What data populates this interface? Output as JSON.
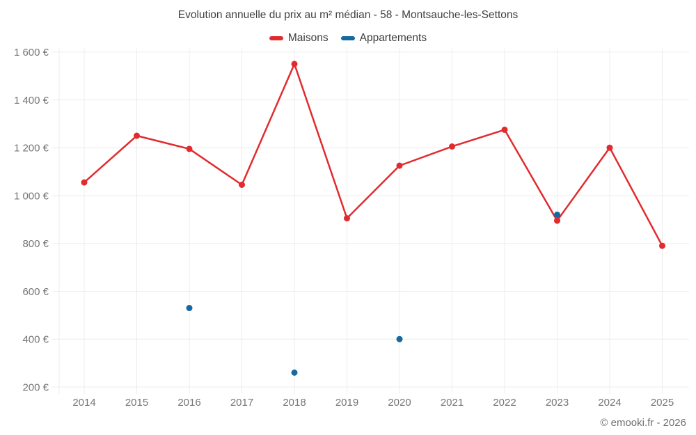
{
  "page": {
    "title": "Evolution annuelle du prix au m² médian - 58 - Montsauche-les-Settons",
    "footer": "© emooki.fr - 2026"
  },
  "chart_data": {
    "type": "line",
    "title": "Evolution annuelle du prix au m² médian - 58 - Montsauche-les-Settons",
    "x": [
      2014,
      2015,
      2016,
      2017,
      2018,
      2019,
      2020,
      2021,
      2022,
      2023,
      2024,
      2025
    ],
    "series": [
      {
        "name": "Maisons",
        "color": "#e12b2e",
        "style": "line+markers",
        "values": [
          1055,
          1250,
          1195,
          1045,
          1550,
          905,
          1125,
          1205,
          1275,
          895,
          1200,
          790
        ]
      },
      {
        "name": "Appartements",
        "color": "#16699f",
        "style": "markers",
        "values": [
          null,
          null,
          530,
          null,
          260,
          null,
          400,
          null,
          null,
          920,
          null,
          null
        ]
      }
    ],
    "ylim": [
      200,
      1600
    ],
    "yticks": [
      {
        "value": 200,
        "label": "200 €"
      },
      {
        "value": 400,
        "label": "400 €"
      },
      {
        "value": 600,
        "label": "600 €"
      },
      {
        "value": 800,
        "label": "800 €"
      },
      {
        "value": 1000,
        "label": "1 000 €"
      },
      {
        "value": 1200,
        "label": "1 200 €"
      },
      {
        "value": 1400,
        "label": "1 400 €"
      },
      {
        "value": 1600,
        "label": "1 600 €"
      },
      {
        "value": 1750,
        "label": "€",
        "partial": true
      }
    ],
    "grid": true,
    "legend_position": "top"
  }
}
